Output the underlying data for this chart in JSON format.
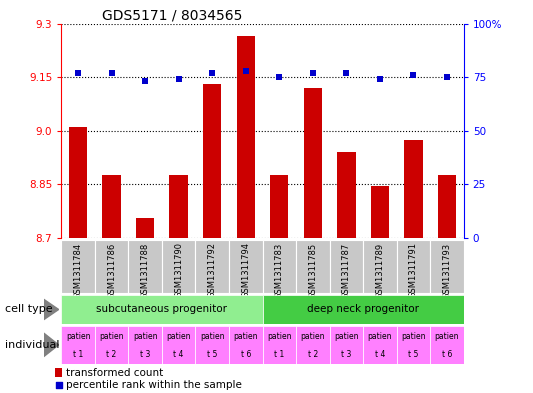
{
  "title": "GDS5171 / 8034565",
  "samples": [
    "GSM1311784",
    "GSM1311786",
    "GSM1311788",
    "GSM1311790",
    "GSM1311792",
    "GSM1311794",
    "GSM1311783",
    "GSM1311785",
    "GSM1311787",
    "GSM1311789",
    "GSM1311791",
    "GSM1311793"
  ],
  "bar_values": [
    9.01,
    8.875,
    8.755,
    8.875,
    9.13,
    9.265,
    8.875,
    9.12,
    8.94,
    8.845,
    8.975,
    8.875
  ],
  "dot_values": [
    77,
    77,
    73,
    74,
    77,
    78,
    75,
    77,
    77,
    74,
    76,
    75
  ],
  "ylim_left": [
    8.7,
    9.3
  ],
  "ylim_right": [
    0,
    100
  ],
  "yticks_left": [
    8.7,
    8.85,
    9.0,
    9.15,
    9.3
  ],
  "yticks_right": [
    0,
    25,
    50,
    75,
    100
  ],
  "bar_color": "#cc0000",
  "dot_color": "#0000cc",
  "bar_width": 0.55,
  "cell_types": [
    "subcutaneous progenitor",
    "deep neck progenitor"
  ],
  "cell_type_colors": [
    "#90ee90",
    "#44cc44"
  ],
  "individual_color": "#ff80ff",
  "legend_bar_label": "transformed count",
  "legend_dot_label": "percentile rank within the sample",
  "grid_color": "black",
  "xlabels_bg": "#c8c8c8",
  "title_fontsize": 10
}
